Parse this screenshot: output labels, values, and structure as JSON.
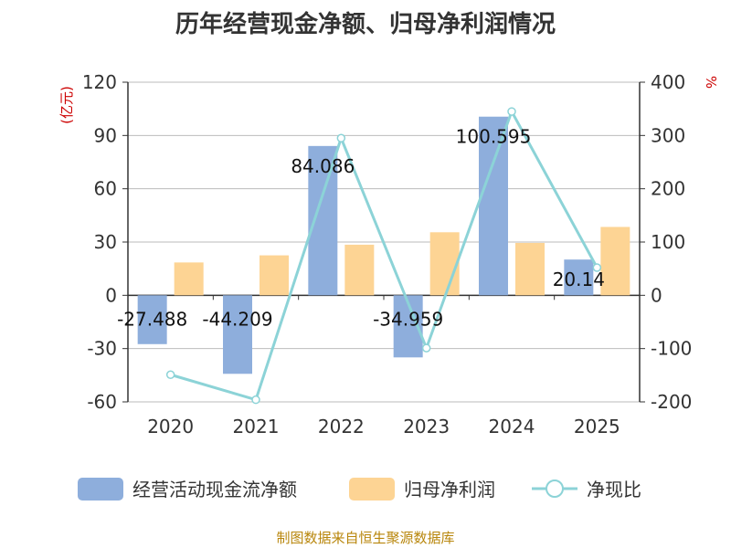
{
  "title": "历年经营现金净额、归母净利润情况",
  "source": "制图数据来自恒生聚源数据库",
  "colors": {
    "cashflow": "#8EAEDC",
    "profit": "#FDD494",
    "ratio": "#8CD3D7",
    "grid": "#bbbbbb",
    "axis": "#333333",
    "unit": "#cc0000"
  },
  "chart_data": {
    "type": "bar",
    "categories": [
      "2020",
      "2021",
      "2022",
      "2023",
      "2024",
      "2025"
    ],
    "left_axis": {
      "unit": "(亿元)",
      "min": -60,
      "max": 120,
      "ticks": [
        -60,
        -30,
        0,
        30,
        60,
        90,
        120
      ]
    },
    "right_axis": {
      "unit": "%",
      "min": -200,
      "max": 400,
      "ticks": [
        -200,
        -100,
        0,
        100,
        200,
        300,
        400
      ]
    },
    "series": [
      {
        "name": "经营活动现金流净额",
        "type": "bar",
        "axis": "left",
        "values": [
          -27.488,
          -44.209,
          84.086,
          -34.959,
          100.595,
          20.14
        ],
        "labels": [
          "-27.488",
          "-44.209",
          "84.086",
          "-34.959",
          "100.595",
          "20.14"
        ]
      },
      {
        "name": "归母净利润",
        "type": "bar",
        "axis": "left",
        "values": [
          18.5,
          22.5,
          28.5,
          35.5,
          29.5,
          38.5
        ]
      },
      {
        "name": "净现比",
        "type": "line",
        "axis": "right",
        "values": [
          -149,
          -196,
          295,
          -99,
          345,
          52
        ]
      }
    ],
    "legend": "bottom-center"
  }
}
